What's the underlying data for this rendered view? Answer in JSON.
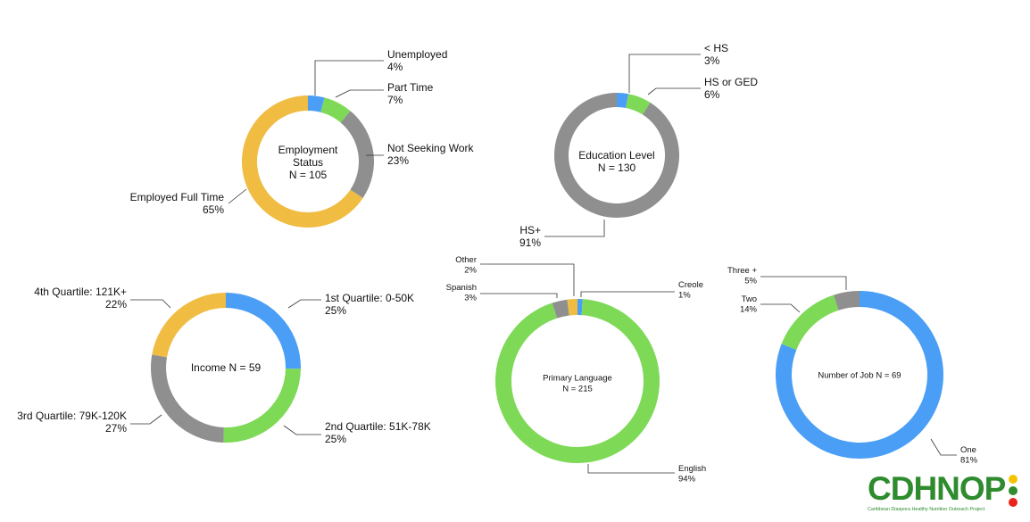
{
  "chart_data": [
    {
      "type": "pie",
      "title": [
        "Employment",
        "Status",
        "N = 105"
      ],
      "slices": [
        {
          "label": "Unemployed",
          "value": 4,
          "value_label": "4%",
          "color": "#4a9ef5"
        },
        {
          "label": "Part Time",
          "value": 7,
          "value_label": "7%",
          "color": "#7ed957"
        },
        {
          "label": "Not Seeking Work",
          "value": 23,
          "value_label": "23%",
          "color": "#8f8f8f"
        },
        {
          "label": "Employed Full Time",
          "value": 65,
          "value_label": "65%",
          "color": "#f0bc42"
        }
      ]
    },
    {
      "type": "pie",
      "title": [
        "Education Level",
        "N = 130"
      ],
      "slices": [
        {
          "label": "< HS",
          "value": 3,
          "value_label": "3%",
          "color": "#4a9ef5"
        },
        {
          "label": "HS or GED",
          "value": 6,
          "value_label": "6%",
          "color": "#7ed957"
        },
        {
          "label": "HS+",
          "value": 91,
          "value_label": "91%",
          "color": "#8f8f8f"
        }
      ]
    },
    {
      "type": "pie",
      "title": [
        "Income N = 59"
      ],
      "slices": [
        {
          "label": "1st Quartile: 0-50K",
          "value": 25,
          "value_label": "25%",
          "color": "#4a9ef5"
        },
        {
          "label": "2nd Quartile: 51K-78K",
          "value": 25,
          "value_label": "25%",
          "color": "#7ed957"
        },
        {
          "label": "3rd Quartile: 79K-120K",
          "value": 27,
          "value_label": "27%",
          "color": "#8f8f8f"
        },
        {
          "label": "4th Quartile: 121K+",
          "value": 22,
          "value_label": "22%",
          "color": "#f0bc42"
        }
      ]
    },
    {
      "type": "pie",
      "title": [
        "Primary Language",
        "N = 215"
      ],
      "slices": [
        {
          "label": "Creole",
          "value": 1,
          "value_label": "1%",
          "color": "#4a9ef5"
        },
        {
          "label": "English",
          "value": 94,
          "value_label": "94%",
          "color": "#7ed957"
        },
        {
          "label": "Spanish",
          "value": 3,
          "value_label": "3%",
          "color": "#8f8f8f"
        },
        {
          "label": "Other",
          "value": 2,
          "value_label": "2%",
          "color": "#f0bc42"
        }
      ]
    },
    {
      "type": "pie",
      "title": [
        "Number of Job N = 69"
      ],
      "slices": [
        {
          "label": "One",
          "value": 81,
          "value_label": "81%",
          "color": "#4a9ef5"
        },
        {
          "label": "Two",
          "value": 14,
          "value_label": "14%",
          "color": "#7ed957"
        },
        {
          "label": "Three +",
          "value": 5,
          "value_label": "5%",
          "color": "#8f8f8f"
        }
      ]
    }
  ],
  "logo": {
    "text": "CDHNOP",
    "tagline": "Caribbean Diaspora Healthy Nutrition Outreach Project",
    "text_color": "#2e8b2e",
    "dot_colors": [
      "#f5c400",
      "#2e8b2e",
      "#e8241c"
    ]
  }
}
